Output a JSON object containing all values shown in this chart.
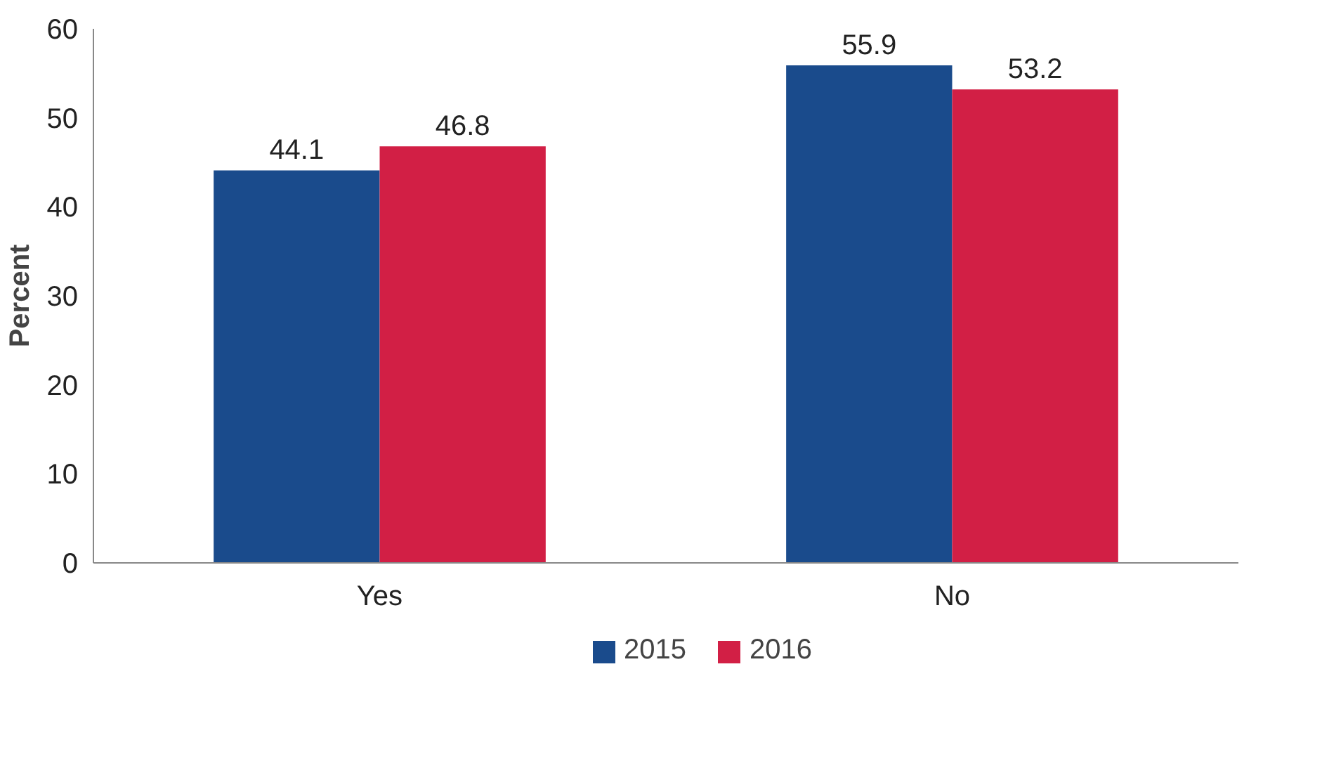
{
  "chart_data": {
    "type": "bar",
    "ylabel": "Percent",
    "categories": [
      "Yes",
      "No"
    ],
    "series": [
      {
        "name": "2015",
        "color": "#1a4b8c",
        "values": [
          44.1,
          55.9
        ]
      },
      {
        "name": "2016",
        "color": "#d21f45",
        "values": [
          46.8,
          53.2
        ]
      }
    ],
    "ylim": [
      0,
      60
    ],
    "yticks": [
      0,
      10,
      20,
      30,
      40,
      50,
      60
    ],
    "grid": false,
    "legend": "bottom",
    "data_labels": true
  }
}
